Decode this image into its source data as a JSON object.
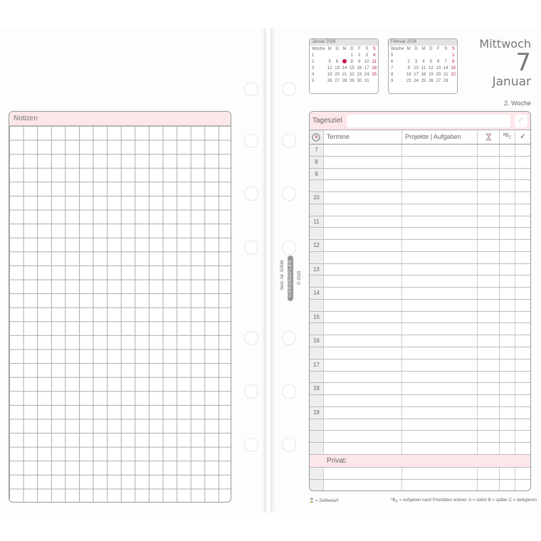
{
  "notes": {
    "title": "Notizen"
  },
  "calendars": [
    {
      "title": "Januar 2026",
      "head": [
        "Woche",
        "M",
        "D",
        "M",
        "D",
        "F",
        "S",
        "S"
      ],
      "rows": [
        [
          "1",
          "",
          "",
          "",
          "1",
          "2",
          "3",
          "4"
        ],
        [
          "2",
          "5",
          "6",
          "•",
          "8",
          "9",
          "10",
          "11"
        ],
        [
          "3",
          "12",
          "13",
          "14",
          "15",
          "16",
          "17",
          "18"
        ],
        [
          "4",
          "19",
          "20",
          "21",
          "22",
          "23",
          "24",
          "25"
        ],
        [
          "5",
          "26",
          "27",
          "28",
          "29",
          "30",
          "31",
          ""
        ]
      ]
    },
    {
      "title": "Februar 2026",
      "head": [
        "Woche",
        "M",
        "D",
        "M",
        "D",
        "F",
        "S",
        "S"
      ],
      "rows": [
        [
          "5",
          "",
          "",
          "",
          "",
          "",
          "",
          "1"
        ],
        [
          "6",
          "2",
          "3",
          "4",
          "5",
          "6",
          "7",
          "8"
        ],
        [
          "7",
          "9",
          "10",
          "11",
          "12",
          "13",
          "14",
          "15"
        ],
        [
          "8",
          "16",
          "17",
          "18",
          "19",
          "20",
          "21",
          "22"
        ],
        [
          "9",
          "23",
          "24",
          "25",
          "26",
          "27",
          "28",
          ""
        ]
      ]
    }
  ],
  "day": {
    "weekday": "Mittwoch",
    "number": "7",
    "month": "Januar",
    "week": "2. Woche",
    "selected_day": "7",
    "accent": "#c0154f"
  },
  "table": {
    "goal_label": "Tagesziel",
    "goal_value": "",
    "check": "✓",
    "headers": {
      "clock": "clock-icon",
      "appointments": "Termine",
      "projects": "Projekte | Aufgaben",
      "time": "hourglass-icon",
      "priority": "ABC",
      "done": "✓"
    },
    "hour_rows": [
      "7",
      "8",
      "9",
      "",
      "10",
      "",
      "11",
      "",
      "12",
      "",
      "13",
      "",
      "14",
      "",
      "15",
      "",
      "16",
      "",
      "17",
      "",
      "18",
      "",
      "19",
      "",
      "",
      ""
    ],
    "private_label": "Privat:"
  },
  "footer": {
    "time_legend": "= Zeitbedarf",
    "priority_legend": "= Aufgaben nach Prioritäten ordnen:  A = sofort   B = später   C = delegieren"
  },
  "spine": {
    "order_no": "Best.-Nr. 50536",
    "brand": "CHRONOPLAN",
    "copyright": "© 2025"
  }
}
